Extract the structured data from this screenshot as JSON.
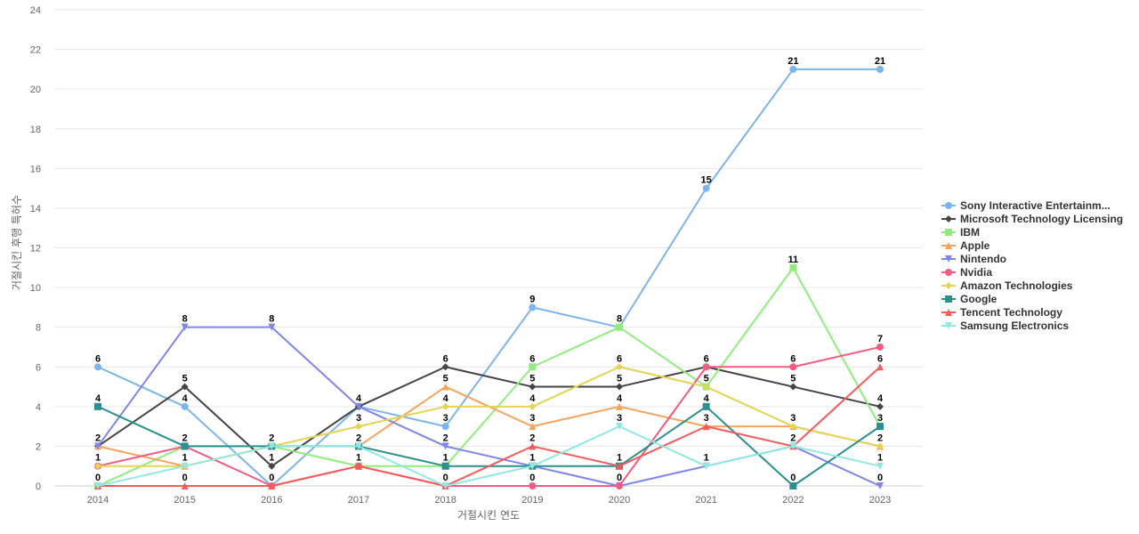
{
  "chart_data": {
    "type": "line",
    "title": "",
    "xlabel": "거절시킨 연도",
    "ylabel": "거절시킨 후행 특허수",
    "x": [
      "2014",
      "2015",
      "2016",
      "2017",
      "2018",
      "2019",
      "2020",
      "2021",
      "2022",
      "2023"
    ],
    "ylim": [
      0,
      24
    ],
    "yticks": [
      0,
      2,
      4,
      6,
      8,
      10,
      12,
      14,
      16,
      18,
      20,
      22,
      24
    ],
    "grid": true,
    "legend_position": "right",
    "series": [
      {
        "name": "Sony Interactive Entertainm...",
        "color": "#7cb5ec",
        "marker": "circle",
        "values": [
          6,
          4,
          0,
          4,
          3,
          9,
          8,
          15,
          21,
          21
        ]
      },
      {
        "name": "Microsoft Technology Licensing",
        "color": "#434348",
        "marker": "diamond",
        "values": [
          2,
          5,
          1,
          4,
          6,
          5,
          5,
          6,
          5,
          4
        ]
      },
      {
        "name": "IBM",
        "color": "#90ed7d",
        "marker": "square",
        "values": [
          0,
          2,
          2,
          1,
          1,
          6,
          8,
          5,
          11,
          3
        ]
      },
      {
        "name": "Apple",
        "color": "#f7a35c",
        "marker": "triangle",
        "values": [
          2,
          1,
          2,
          2,
          5,
          3,
          4,
          3,
          3,
          2
        ]
      },
      {
        "name": "Nintendo",
        "color": "#8085e9",
        "marker": "triangle-down",
        "values": [
          2,
          8,
          8,
          4,
          2,
          1,
          0,
          1,
          2,
          0
        ]
      },
      {
        "name": "Nvidia",
        "color": "#f15c80",
        "marker": "circle",
        "values": [
          1,
          2,
          0,
          1,
          0,
          0,
          0,
          6,
          6,
          7
        ]
      },
      {
        "name": "Amazon Technologies",
        "color": "#e4d354",
        "marker": "diamond",
        "values": [
          1,
          1,
          2,
          3,
          4,
          4,
          6,
          5,
          3,
          2
        ]
      },
      {
        "name": "Google",
        "color": "#2b908f",
        "marker": "square",
        "values": [
          4,
          2,
          2,
          2,
          1,
          1,
          1,
          4,
          0,
          3
        ]
      },
      {
        "name": "Tencent Technology",
        "color": "#f45b5b",
        "marker": "triangle",
        "values": [
          0,
          0,
          0,
          1,
          0,
          2,
          1,
          3,
          2,
          6
        ]
      },
      {
        "name": "Samsung Electronics",
        "color": "#91e8e1",
        "marker": "triangle-down",
        "values": [
          0,
          1,
          2,
          2,
          0,
          1,
          3,
          1,
          2,
          1
        ]
      }
    ],
    "data_labels": [
      {
        "x": "2014",
        "values": [
          6,
          4,
          2,
          1,
          0
        ]
      },
      {
        "x": "2015",
        "values": [
          8,
          5,
          4,
          2,
          1,
          0
        ]
      },
      {
        "x": "2016",
        "values": [
          8,
          2,
          1,
          0
        ]
      },
      {
        "x": "2017",
        "values": [
          4,
          3,
          2,
          1
        ]
      },
      {
        "x": "2018",
        "values": [
          6,
          5,
          4,
          3,
          2,
          1,
          0
        ]
      },
      {
        "x": "2019",
        "values": [
          9,
          6,
          5,
          4,
          3,
          2,
          1,
          0
        ]
      },
      {
        "x": "2020",
        "values": [
          8,
          6,
          5,
          4,
          3,
          1,
          0
        ]
      },
      {
        "x": "2021",
        "values": [
          15,
          6,
          5,
          4,
          3,
          1
        ]
      },
      {
        "x": "2022",
        "values": [
          21,
          11,
          6,
          5,
          3,
          2,
          0
        ]
      },
      {
        "x": "2023",
        "values": [
          21,
          7,
          6,
          4,
          3,
          2,
          1,
          0
        ]
      }
    ]
  }
}
